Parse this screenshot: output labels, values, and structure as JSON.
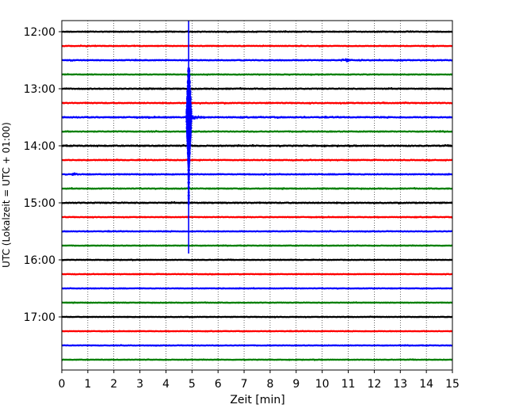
{
  "chart_data": {
    "type": "line",
    "subtype": "helicorder",
    "title": "",
    "xlabel": "Zeit  [min]",
    "ylabel": "UTC (Lokalzeit = UTC + 01:00)",
    "xlim": [
      0,
      15
    ],
    "x_ticks": [
      0,
      1,
      2,
      3,
      4,
      5,
      6,
      7,
      8,
      9,
      10,
      11,
      12,
      13,
      14,
      15
    ],
    "x_tick_labels": [
      "0",
      "1",
      "2",
      "3",
      "4",
      "5",
      "6",
      "7",
      "8",
      "9",
      "10",
      "11",
      "12",
      "13",
      "14",
      "15"
    ],
    "y_tick_labels": [
      "12:00",
      "13:00",
      "14:00",
      "15:00",
      "16:00",
      "17:00"
    ],
    "grid": {
      "x": "dotted",
      "y": "none"
    },
    "line_minutes": 15,
    "color_cycle": [
      "#000000",
      "#ff0000",
      "#0000ff",
      "#008000"
    ],
    "traces": [
      {
        "start": "12:00",
        "color": "#000000",
        "noise": 0.35
      },
      {
        "start": "12:15",
        "color": "#ff0000",
        "noise": 0.3
      },
      {
        "start": "12:30",
        "color": "#0000ff",
        "noise": 0.35,
        "bursts": [
          {
            "minute": 10.95,
            "amp": 1.6,
            "dur": 0.5
          }
        ]
      },
      {
        "start": "12:45",
        "color": "#008000",
        "noise": 0.3
      },
      {
        "start": "13:00",
        "color": "#000000",
        "noise": 0.4
      },
      {
        "start": "13:15",
        "color": "#ff0000",
        "noise": 0.4
      },
      {
        "start": "13:30",
        "color": "#0000ff",
        "noise": 0.45
      },
      {
        "start": "13:45",
        "color": "#008000",
        "noise": 0.35
      },
      {
        "start": "14:00",
        "color": "#000000",
        "noise": 0.45
      },
      {
        "start": "14:15",
        "color": "#ff0000",
        "noise": 0.35
      },
      {
        "start": "14:30",
        "color": "#0000ff",
        "noise": 0.35,
        "bursts": [
          {
            "minute": 0.5,
            "amp": 1.5,
            "dur": 0.3
          }
        ]
      },
      {
        "start": "14:45",
        "color": "#008000",
        "noise": 0.35
      },
      {
        "start": "15:00",
        "color": "#000000",
        "noise": 0.45
      },
      {
        "start": "15:15",
        "color": "#ff0000",
        "noise": 0.3
      },
      {
        "start": "15:30",
        "color": "#0000ff",
        "noise": 0.3
      },
      {
        "start": "15:45",
        "color": "#008000",
        "noise": 0.25
      },
      {
        "start": "16:00",
        "color": "#000000",
        "noise": 0.25
      },
      {
        "start": "16:15",
        "color": "#ff0000",
        "noise": 0.25
      },
      {
        "start": "16:30",
        "color": "#0000ff",
        "noise": 0.25
      },
      {
        "start": "16:45",
        "color": "#008000",
        "noise": 0.25
      },
      {
        "start": "17:00",
        "color": "#000000",
        "noise": 0.25
      },
      {
        "start": "17:15",
        "color": "#ff0000",
        "noise": 0.25
      },
      {
        "start": "17:30",
        "color": "#0000ff",
        "noise": 0.25
      },
      {
        "start": "17:45",
        "color": "#008000",
        "noise": 0.25
      }
    ],
    "event": {
      "minute": 4.87,
      "trace_color": "#0000ff",
      "first_trace_start": "12:00",
      "last_trace_start": "15:45",
      "main_trace_start": "13:30",
      "coda_minutes": 0.6
    }
  }
}
